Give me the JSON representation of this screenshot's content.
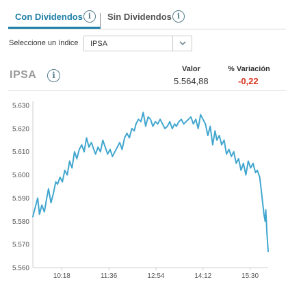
{
  "tabs": [
    {
      "label": "Con Dividendos",
      "active": true
    },
    {
      "label": "Sin Dividendos",
      "active": false
    }
  ],
  "selector": {
    "label": "Seleccione un índice",
    "value": "IPSA"
  },
  "header": {
    "index_name": "IPSA",
    "valor_label": "Valor",
    "valor": "5.564,88",
    "variacion_label": "% Variación",
    "variacion": "-0,22",
    "variacion_color": "#d9341f"
  },
  "chart_data": {
    "type": "line",
    "title": "",
    "xlabel": "",
    "ylabel": "",
    "line_color": "#41a6cf",
    "ylim": [
      5560,
      5630
    ],
    "xlim": [
      "09:30",
      "16:00"
    ],
    "y_ticks": [
      "5.560",
      "5.570",
      "5.580",
      "5.590",
      "5.600",
      "5.610",
      "5.620",
      "5.630"
    ],
    "y_tick_values": [
      5560,
      5570,
      5580,
      5590,
      5600,
      5610,
      5620,
      5630
    ],
    "x_ticks": [
      "10:18",
      "11:36",
      "12:54",
      "14:12",
      "15:30"
    ],
    "grid": false,
    "series": [
      {
        "x": [
          "09:30",
          "09:34",
          "09:38",
          "09:41",
          "09:45",
          "09:49",
          "09:53",
          "09:56",
          "10:00",
          "10:04",
          "10:08",
          "10:11",
          "10:15",
          "10:19",
          "10:23",
          "10:27",
          "10:31",
          "10:35",
          "10:39",
          "10:43",
          "10:47",
          "10:51",
          "10:55",
          "10:59",
          "11:03",
          "11:07",
          "11:11",
          "11:14",
          "11:18",
          "11:22",
          "11:26",
          "11:30",
          "11:34",
          "11:38",
          "11:42",
          "11:46",
          "11:50",
          "11:54",
          "11:58",
          "12:02",
          "12:06",
          "12:10",
          "12:14",
          "12:18",
          "12:21",
          "12:25",
          "12:29",
          "12:33",
          "12:37",
          "12:41",
          "12:45",
          "12:49",
          "12:53",
          "12:57",
          "13:01",
          "13:05",
          "13:09",
          "13:13",
          "13:17",
          "13:21",
          "13:25",
          "13:28",
          "13:32",
          "13:36",
          "13:40",
          "13:44",
          "13:48",
          "13:52",
          "13:56",
          "14:00",
          "14:04",
          "14:08",
          "14:12",
          "14:16",
          "14:20",
          "14:24",
          "14:28",
          "14:32",
          "14:35",
          "14:39",
          "14:43",
          "14:47",
          "14:51",
          "14:55",
          "14:59",
          "15:03",
          "15:07",
          "15:11",
          "15:15",
          "15:19",
          "15:23",
          "15:27",
          "15:31",
          "15:35",
          "15:39",
          "15:42",
          "15:46",
          "15:50",
          "15:53",
          "15:55",
          "15:56",
          "15:58",
          "16:00"
        ],
        "y": [
          5582,
          5586,
          5590,
          5583,
          5587,
          5584,
          5590,
          5594,
          5588,
          5592,
          5597,
          5596,
          5599,
          5597,
          5602,
          5600,
          5606,
          5603,
          5610,
          5607,
          5611,
          5613,
          5610,
          5616,
          5612,
          5614,
          5611,
          5609,
          5612,
          5610,
          5615,
          5612,
          5609,
          5611,
          5608,
          5610,
          5612,
          5614,
          5611,
          5616,
          5618,
          5616,
          5620,
          5619,
          5622,
          5624,
          5623,
          5627,
          5621,
          5625,
          5624,
          5621,
          5623,
          5622,
          5624,
          5622,
          5620,
          5621,
          5623,
          5620,
          5622,
          5621,
          5623,
          5624,
          5622,
          5623,
          5624,
          5625,
          5622,
          5624,
          5620,
          5626,
          5624,
          5622,
          5617,
          5621,
          5613,
          5619,
          5615,
          5617,
          5613,
          5615,
          5609,
          5611,
          5608,
          5610,
          5605,
          5607,
          5602,
          5605,
          5600,
          5606,
          5603,
          5605,
          5601,
          5602,
          5599,
          5590,
          5583,
          5580,
          5585,
          5575,
          5567
        ]
      }
    ]
  }
}
